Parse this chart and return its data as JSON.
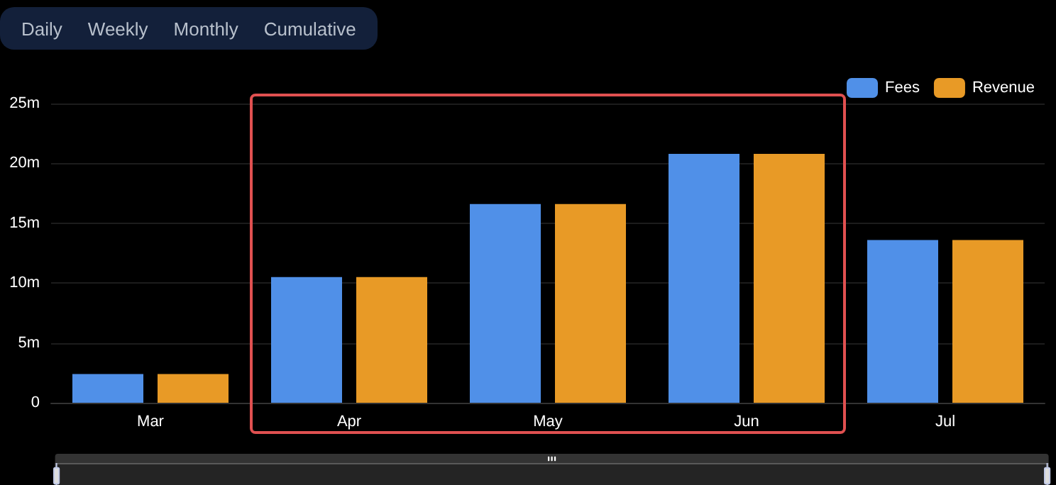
{
  "chart_data": {
    "type": "bar",
    "categories": [
      "Mar",
      "Apr",
      "May",
      "Jun",
      "Jul"
    ],
    "series": [
      {
        "name": "Fees",
        "color": "#5090e8",
        "values": [
          2.4,
          10.5,
          16.6,
          20.8,
          13.6
        ]
      },
      {
        "name": "Revenue",
        "color": "#e89a26",
        "values": [
          2.4,
          10.5,
          16.6,
          20.8,
          13.6
        ]
      }
    ],
    "ylim": [
      0,
      25
    ],
    "yticks": [
      {
        "value": 0,
        "label": "0"
      },
      {
        "value": 5,
        "label": "5m"
      },
      {
        "value": 10,
        "label": "10m"
      },
      {
        "value": 15,
        "label": "15m"
      },
      {
        "value": 20,
        "label": "20m"
      },
      {
        "value": 25,
        "label": "25m"
      }
    ],
    "grid": "y",
    "legend": "top right",
    "annotations": [
      "Daily",
      "Weekly",
      "Monthly",
      "Cumulative"
    ]
  }
}
